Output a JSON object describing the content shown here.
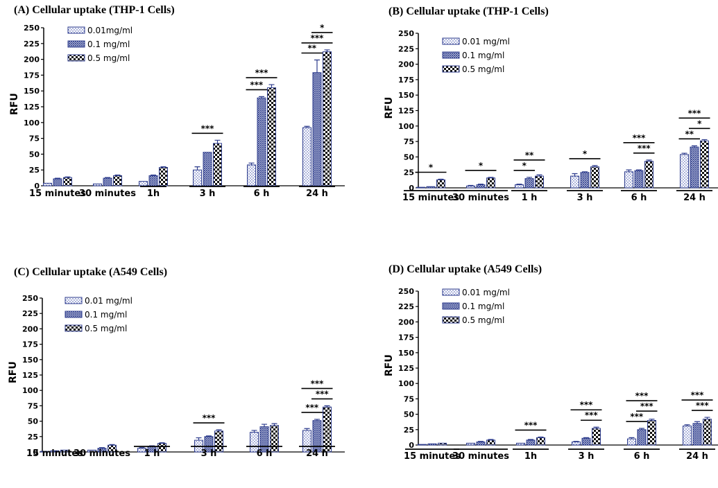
{
  "chart_data": [
    {
      "type": "bar",
      "title": "(A) Cellular uptake (THP-1 Cells)",
      "ylabel": "RFU",
      "ylim": [
        0,
        250
      ],
      "yticks": [
        0,
        25,
        50,
        75,
        100,
        125,
        150,
        175,
        200,
        225,
        250
      ],
      "categories": [
        "15 minutes",
        "30 minutes",
        "1h",
        "3 h",
        "6 h",
        "24 h"
      ],
      "series": [
        {
          "name": "0.01mg/ml",
          "values": [
            4,
            3,
            7,
            25,
            33,
            92
          ],
          "errors": [
            0,
            0,
            0,
            5,
            3,
            2
          ]
        },
        {
          "name": "0.1 mg/ml",
          "values": [
            11,
            12,
            16,
            53,
            139,
            179
          ],
          "errors": [
            1,
            1,
            1,
            0,
            2,
            20
          ]
        },
        {
          "name": "0.5 mg/ml",
          "values": [
            13,
            16,
            29,
            67,
            155,
            212
          ],
          "errors": [
            1,
            1,
            1,
            5,
            5,
            3
          ]
        }
      ],
      "significance": [
        {
          "category": 3,
          "from": 0,
          "to": 2,
          "label": "***"
        },
        {
          "category": 4,
          "from": 0,
          "to": 1,
          "label": "***"
        },
        {
          "category": 4,
          "from": 0,
          "to": 2,
          "label": "***"
        },
        {
          "category": 5,
          "from": 0,
          "to": 1,
          "label": "**"
        },
        {
          "category": 5,
          "from": 0,
          "to": 2,
          "label": "***"
        },
        {
          "category": 5,
          "from": 1,
          "to": 2,
          "label": "*"
        }
      ]
    },
    {
      "type": "bar",
      "title": "(B) Cellular uptake (THP-1 Cells)",
      "ylabel": "RFU",
      "ylim": [
        0,
        250
      ],
      "yticks": [
        0,
        25,
        50,
        75,
        100,
        125,
        150,
        175,
        200,
        225,
        250
      ],
      "categories": [
        "15 minutes",
        "30 minutes",
        "1 h",
        "3 h",
        "6 h",
        "24 h"
      ],
      "series": [
        {
          "name": "0.01 mg/ml",
          "values": [
            1,
            3,
            5,
            19,
            26,
            54
          ],
          "errors": [
            0,
            1,
            1,
            4,
            3,
            2
          ]
        },
        {
          "name": "0.1 mg/ml",
          "values": [
            2,
            5,
            15,
            25,
            28,
            66
          ],
          "errors": [
            0,
            1,
            2,
            1,
            1,
            2
          ]
        },
        {
          "name": "0.5 mg/ml",
          "values": [
            13,
            16,
            19,
            34,
            43,
            76
          ],
          "errors": [
            1,
            1,
            2,
            2,
            2,
            2
          ]
        }
      ],
      "significance": [
        {
          "category": 0,
          "from": 0,
          "to": 2,
          "label": "*"
        },
        {
          "category": 1,
          "from": 0,
          "to": 2,
          "label": "*"
        },
        {
          "category": 2,
          "from": 0,
          "to": 1,
          "label": "*"
        },
        {
          "category": 2,
          "from": 0,
          "to": 2,
          "label": "**"
        },
        {
          "category": 3,
          "from": 0,
          "to": 2,
          "label": "*"
        },
        {
          "category": 4,
          "from": 1,
          "to": 2,
          "label": "***"
        },
        {
          "category": 4,
          "from": 0,
          "to": 2,
          "label": "***"
        },
        {
          "category": 5,
          "from": 0,
          "to": 1,
          "label": "**"
        },
        {
          "category": 5,
          "from": 1,
          "to": 2,
          "label": "*"
        },
        {
          "category": 5,
          "from": 0,
          "to": 2,
          "label": "***"
        }
      ]
    },
    {
      "type": "bar",
      "title": "(C) Cellular uptake (A549 Cells)",
      "ylabel": "RFU",
      "ylim": [
        0,
        250
      ],
      "yticks": [
        0,
        25,
        50,
        75,
        100,
        125,
        150,
        175,
        200,
        225,
        250
      ],
      "categories": [
        "15 minutes",
        "30 minutes",
        "1 h",
        "3 h",
        "6 h",
        "24 h"
      ],
      "series": [
        {
          "name": "0.01 mg/ml",
          "values": [
            1,
            3,
            6,
            19,
            32,
            35
          ],
          "errors": [
            0,
            0,
            1,
            4,
            3,
            3
          ]
        },
        {
          "name": "0.1 mg/ml",
          "values": [
            2,
            6,
            9,
            25,
            41,
            51
          ],
          "errors": [
            0,
            1,
            1,
            1,
            4,
            2
          ]
        },
        {
          "name": "0.5 mg/ml",
          "values": [
            3,
            11,
            14,
            34,
            43,
            73
          ],
          "errors": [
            0,
            1,
            1,
            2,
            3,
            2
          ]
        }
      ],
      "significance": [
        {
          "category": 3,
          "from": 0,
          "to": 2,
          "label": "***"
        },
        {
          "category": 5,
          "from": 0,
          "to": 1,
          "label": "***"
        },
        {
          "category": 5,
          "from": 1,
          "to": 2,
          "label": "***"
        },
        {
          "category": 5,
          "from": 0,
          "to": 2,
          "label": "***"
        }
      ]
    },
    {
      "type": "bar",
      "title": "(D) Cellular uptake (A549 Cells)",
      "ylabel": "RFU",
      "ylim": [
        0,
        250
      ],
      "yticks": [
        0,
        25,
        50,
        75,
        100,
        125,
        150,
        175,
        200,
        225,
        250
      ],
      "categories": [
        "15 minutes",
        "30 minutes",
        "1h",
        "3 h",
        "6 h",
        "24 h"
      ],
      "series": [
        {
          "name": "0.01 mg/ml",
          "values": [
            1,
            3,
            3,
            5,
            10,
            31
          ],
          "errors": [
            0,
            0,
            0,
            1,
            2,
            2
          ]
        },
        {
          "name": "0.1 mg/ml",
          "values": [
            2,
            5,
            8,
            11,
            25,
            35
          ],
          "errors": [
            0,
            1,
            1,
            1,
            2,
            3
          ]
        },
        {
          "name": "0.5 mg/ml",
          "values": [
            3,
            8,
            12,
            27,
            40,
            42
          ],
          "errors": [
            0,
            1,
            1,
            2,
            2,
            3
          ]
        }
      ],
      "significance": [
        {
          "category": 2,
          "from": 0,
          "to": 2,
          "label": "***"
        },
        {
          "category": 3,
          "from": 1,
          "to": 2,
          "label": "***"
        },
        {
          "category": 3,
          "from": 0,
          "to": 2,
          "label": "***"
        },
        {
          "category": 4,
          "from": 0,
          "to": 1,
          "label": "***"
        },
        {
          "category": 4,
          "from": 1,
          "to": 2,
          "label": "***"
        },
        {
          "category": 4,
          "from": 0,
          "to": 2,
          "label": "***"
        },
        {
          "category": 5,
          "from": 1,
          "to": 2,
          "label": "***"
        },
        {
          "category": 5,
          "from": 0,
          "to": 2,
          "label": "***"
        }
      ]
    }
  ]
}
